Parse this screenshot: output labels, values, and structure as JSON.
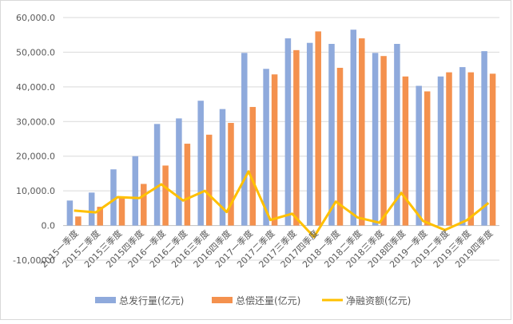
{
  "chart_data": {
    "type": "bar",
    "categories": [
      "2015一季度",
      "2015二季度",
      "2015三季度",
      "2015四季度",
      "2016一季度",
      "2016二季度",
      "2016三季度",
      "2016四季度",
      "2017一季度",
      "2017二季度",
      "2017三季度",
      "2017四季度",
      "2018一季度",
      "2018二季度",
      "2018三季度",
      "2018四季度",
      "2019一季度",
      "2019二季度",
      "2019三季度",
      "2019四季度"
    ],
    "series": [
      {
        "name": "总发行量(亿元)",
        "type": "bar",
        "color": "#8faadc",
        "values": [
          7200,
          9500,
          16200,
          20000,
          29300,
          30900,
          36000,
          33600,
          49800,
          45200,
          54000,
          52700,
          52400,
          56500,
          49800,
          52400,
          40300,
          43000,
          45700,
          50300
        ]
      },
      {
        "name": "总偿还量(亿元)",
        "type": "bar",
        "color": "#f4914e",
        "values": [
          2600,
          5400,
          8000,
          12000,
          17300,
          23600,
          26200,
          29600,
          34200,
          43600,
          50600,
          56000,
          45500,
          54000,
          48900,
          43000,
          38700,
          44200,
          44200,
          43800
        ]
      },
      {
        "name": "净融资额(亿元)",
        "type": "line",
        "color": "#ffc000",
        "values": [
          4300,
          3800,
          8200,
          7900,
          11900,
          7200,
          10000,
          3900,
          15600,
          1600,
          3400,
          -3300,
          6900,
          2300,
          800,
          9400,
          1300,
          -1300,
          1500,
          6500
        ]
      }
    ],
    "yticks": [
      "-10,000.0",
      "0.0",
      "10,000.0",
      "20,000.0",
      "30,000.0",
      "40,000.0",
      "50,000.0",
      "60,000.0"
    ],
    "ylim": [
      -10000,
      60000
    ],
    "grid": true,
    "legend": "bottom"
  }
}
